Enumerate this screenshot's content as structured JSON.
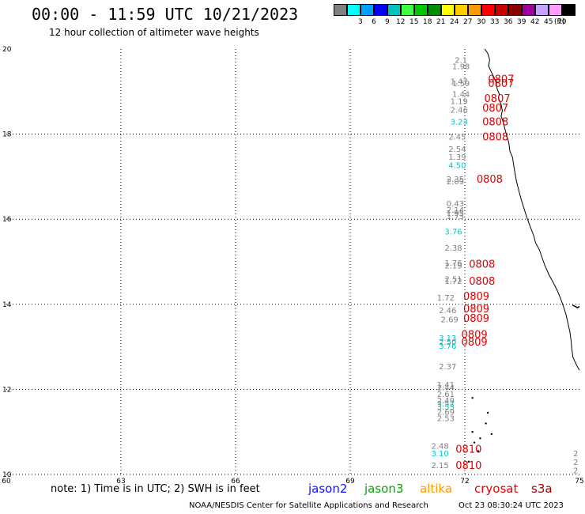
{
  "header": {
    "title": "00:00 - 11:59 UTC 10/21/2023",
    "subtitle": "12 hour collection of altimeter wave heights"
  },
  "color_scale": {
    "unit": "(ft)",
    "swatches": [
      {
        "color": "#808080",
        "label": ""
      },
      {
        "color": "#00ffff",
        "label": "3"
      },
      {
        "color": "#00a0ff",
        "label": "6"
      },
      {
        "color": "#0000ff",
        "label": "9"
      },
      {
        "color": "#00c0c0",
        "label": "12"
      },
      {
        "color": "#40ff40",
        "label": "15"
      },
      {
        "color": "#00c800",
        "label": "18"
      },
      {
        "color": "#008c00",
        "label": "21"
      },
      {
        "color": "#ffff00",
        "label": "24"
      },
      {
        "color": "#ffcc00",
        "label": "27"
      },
      {
        "color": "#ff9900",
        "label": "30"
      },
      {
        "color": "#ff0000",
        "label": "33"
      },
      {
        "color": "#c80000",
        "label": "36"
      },
      {
        "color": "#8c0000",
        "label": "39"
      },
      {
        "color": "#a000a0",
        "label": "42"
      },
      {
        "color": "#c8a0ff",
        "label": "45"
      },
      {
        "color": "#ff9cff",
        "label": "70"
      },
      {
        "color": "#000000",
        "label": ""
      }
    ]
  },
  "map": {
    "x_axis": {
      "min": 60,
      "max": 75,
      "ticks": [
        "60",
        "63",
        "66",
        "69",
        "72",
        "75"
      ]
    },
    "y_axis": {
      "min": 10,
      "max": 20,
      "ticks": [
        "10",
        "12",
        "14",
        "16",
        "18",
        "20"
      ]
    },
    "grid": "dotted",
    "coastline_color": "#000000",
    "wave_labels": [
      {
        "lon": 71.9,
        "lat": 19.75,
        "text": "2.1",
        "color": "#808080"
      },
      {
        "lon": 71.9,
        "lat": 19.6,
        "text": "1.98",
        "color": "#808080"
      },
      {
        "lon": 71.85,
        "lat": 19.25,
        "text": "1.47",
        "color": "#808080"
      },
      {
        "lon": 71.9,
        "lat": 19.2,
        "text": "1.59",
        "color": "#808080"
      },
      {
        "lon": 71.9,
        "lat": 18.95,
        "text": "1.44",
        "color": "#808080"
      },
      {
        "lon": 71.85,
        "lat": 18.78,
        "text": "1.19",
        "color": "#808080"
      },
      {
        "lon": 71.85,
        "lat": 18.58,
        "text": "2.46",
        "color": "#808080"
      },
      {
        "lon": 71.85,
        "lat": 18.3,
        "text": "3.23",
        "color": "#00c8c8"
      },
      {
        "lon": 71.8,
        "lat": 17.95,
        "text": "2.45",
        "color": "#808080"
      },
      {
        "lon": 71.8,
        "lat": 17.66,
        "text": "2.54",
        "color": "#808080"
      },
      {
        "lon": 71.8,
        "lat": 17.47,
        "text": "1.39",
        "color": "#808080"
      },
      {
        "lon": 71.8,
        "lat": 17.28,
        "text": "4.50",
        "color": "#00c8c8"
      },
      {
        "lon": 71.75,
        "lat": 16.95,
        "text": "2.35",
        "color": "#808080"
      },
      {
        "lon": 71.75,
        "lat": 16.9,
        "text": "2.09",
        "color": "#808080"
      },
      {
        "lon": 71.75,
        "lat": 16.38,
        "text": "0.43",
        "color": "#808080"
      },
      {
        "lon": 71.75,
        "lat": 16.23,
        "text": "2.14",
        "color": "#808080"
      },
      {
        "lon": 71.75,
        "lat": 16.15,
        "text": "1.95",
        "color": "#808080"
      },
      {
        "lon": 71.75,
        "lat": 16.08,
        "text": "1.73",
        "color": "#808080"
      },
      {
        "lon": 71.7,
        "lat": 15.72,
        "text": "3.76",
        "color": "#00c8c8"
      },
      {
        "lon": 71.7,
        "lat": 15.33,
        "text": "2.38",
        "color": "#808080"
      },
      {
        "lon": 71.7,
        "lat": 14.98,
        "text": "1.76",
        "color": "#808080"
      },
      {
        "lon": 71.7,
        "lat": 14.92,
        "text": "2.19",
        "color": "#808080"
      },
      {
        "lon": 71.7,
        "lat": 14.6,
        "text": "2.51",
        "color": "#808080"
      },
      {
        "lon": 71.7,
        "lat": 14.55,
        "text": "1.72",
        "color": "#808080"
      },
      {
        "lon": 71.5,
        "lat": 14.16,
        "text": "1.72",
        "color": "#808080"
      },
      {
        "lon": 71.55,
        "lat": 13.87,
        "text": "2.46",
        "color": "#808080"
      },
      {
        "lon": 71.6,
        "lat": 13.65,
        "text": "2.69",
        "color": "#808080"
      },
      {
        "lon": 71.55,
        "lat": 13.22,
        "text": "3.13",
        "color": "#00c8c8"
      },
      {
        "lon": 71.55,
        "lat": 13.12,
        "text": "2.50",
        "color": "#808080"
      },
      {
        "lon": 71.55,
        "lat": 13.03,
        "text": "3.76",
        "color": "#00c8c8"
      },
      {
        "lon": 71.55,
        "lat": 12.55,
        "text": "2.37",
        "color": "#808080"
      },
      {
        "lon": 71.5,
        "lat": 12.12,
        "text": "1.41",
        "color": "#808080"
      },
      {
        "lon": 71.5,
        "lat": 12.05,
        "text": "2.44",
        "color": "#808080"
      },
      {
        "lon": 71.5,
        "lat": 11.9,
        "text": "2.61",
        "color": "#808080"
      },
      {
        "lon": 71.5,
        "lat": 11.75,
        "text": "2.49",
        "color": "#808080"
      },
      {
        "lon": 71.5,
        "lat": 11.67,
        "text": "3.52",
        "color": "#00c8c8"
      },
      {
        "lon": 71.5,
        "lat": 11.6,
        "text": "3.53",
        "color": "#00c8c8"
      },
      {
        "lon": 71.5,
        "lat": 11.48,
        "text": "2.69",
        "color": "#808080"
      },
      {
        "lon": 71.5,
        "lat": 11.33,
        "text": "2.53",
        "color": "#808080"
      },
      {
        "lon": 71.35,
        "lat": 10.68,
        "text": "2.48",
        "color": "#808080"
      },
      {
        "lon": 71.35,
        "lat": 10.5,
        "text": "3.10",
        "color": "#00c8c8"
      },
      {
        "lon": 71.35,
        "lat": 10.22,
        "text": "2.15",
        "color": "#808080"
      },
      {
        "lon": 74.9,
        "lat": 10.5,
        "text": "2",
        "color": "#808080"
      },
      {
        "lon": 74.9,
        "lat": 10.3,
        "text": "2",
        "color": "#808080"
      },
      {
        "lon": 74.9,
        "lat": 10.1,
        "text": "2",
        "color": "#808080"
      }
    ],
    "time_labels": [
      {
        "lon": 72.95,
        "lat": 19.3,
        "text": "0807"
      },
      {
        "lon": 72.95,
        "lat": 19.2,
        "text": "0807"
      },
      {
        "lon": 72.85,
        "lat": 18.85,
        "text": "0807"
      },
      {
        "lon": 72.8,
        "lat": 18.62,
        "text": "0807"
      },
      {
        "lon": 72.8,
        "lat": 18.3,
        "text": "0808"
      },
      {
        "lon": 72.8,
        "lat": 17.95,
        "text": "0808"
      },
      {
        "lon": 72.65,
        "lat": 16.95,
        "text": "0808"
      },
      {
        "lon": 72.45,
        "lat": 14.95,
        "text": "0808"
      },
      {
        "lon": 72.45,
        "lat": 14.55,
        "text": "0808"
      },
      {
        "lon": 72.3,
        "lat": 14.2,
        "text": "0809"
      },
      {
        "lon": 72.3,
        "lat": 13.9,
        "text": "0809"
      },
      {
        "lon": 72.3,
        "lat": 13.68,
        "text": "0809"
      },
      {
        "lon": 72.25,
        "lat": 13.3,
        "text": "0809"
      },
      {
        "lon": 72.25,
        "lat": 13.12,
        "text": "0809"
      },
      {
        "lon": 72.1,
        "lat": 10.6,
        "text": "0810"
      },
      {
        "lon": 72.1,
        "lat": 10.22,
        "text": "0810"
      }
    ]
  },
  "legend": {
    "note": "note: 1) Time is in UTC; 2) SWH is in feet",
    "missions": [
      {
        "name": "jason2",
        "color": "#1010ff"
      },
      {
        "name": "jason3",
        "color": "#10a010"
      },
      {
        "name": "altika",
        "color": "#ff9a00"
      },
      {
        "name": "cryosat",
        "color": "#e00000"
      },
      {
        "name": "s3a",
        "color": "#a00000"
      }
    ]
  },
  "footer": {
    "credit": "NOAA/NESDIS Center for Satellite Applications and Research",
    "timestamp": "Oct 23 08:30:24 UTC 2023"
  }
}
